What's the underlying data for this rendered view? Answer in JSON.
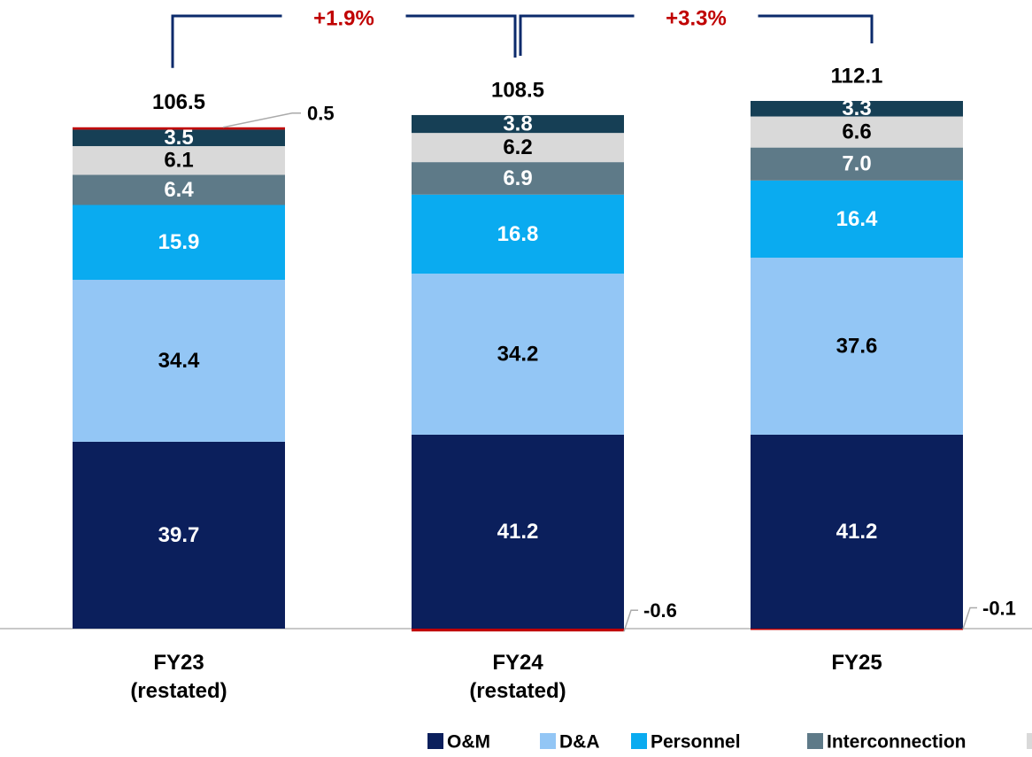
{
  "chart_data": {
    "type": "stacked_bar",
    "categories": [
      "FY23\n(restated)",
      "FY24\n(restated)",
      "FY25"
    ],
    "series": [
      {
        "name": "O&M",
        "color": "#0b1f5c",
        "values": [
          39.7,
          41.2,
          41.2
        ]
      },
      {
        "name": "D&A",
        "color": "#93c6f5",
        "values": [
          34.4,
          34.2,
          37.6
        ]
      },
      {
        "name": "Personnel",
        "color": "#0aabf0",
        "values": [
          15.9,
          16.8,
          16.4
        ]
      },
      {
        "name": "Interconnection",
        "color": "#5e7a88",
        "values": [
          6.4,
          6.9,
          7.0
        ],
        "value_labels": [
          "6.4",
          "6.9",
          "7.0"
        ]
      },
      {
        "color": "#d9d9d9",
        "values": [
          6.1,
          6.2,
          6.6
        ]
      },
      {
        "color": "#163f55",
        "values": [
          3.5,
          3.8,
          3.3
        ]
      },
      {
        "color": "#c00000",
        "values": [
          0.5,
          -0.6,
          -0.1
        ]
      }
    ],
    "totals": [
      106.5,
      108.5,
      112.1
    ],
    "growth_labels": [
      "+1.9%",
      "+3.3%"
    ],
    "growth_color": "#c00000",
    "bracket_color": "#0b2a6b"
  }
}
